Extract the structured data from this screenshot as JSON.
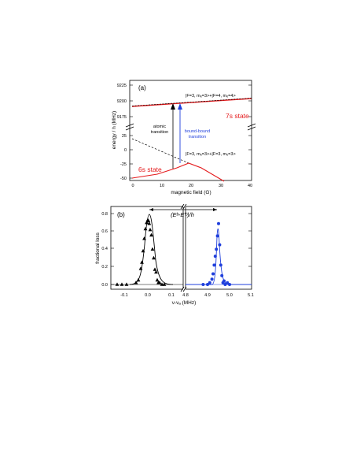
{
  "panel_a": {
    "label": "(a)",
    "xlabel": "magnetic field (G)",
    "ylabel": "energy / h (MHz)",
    "upper_ticks": [
      "9225",
      "9200",
      "9175"
    ],
    "lower_ticks": [
      "25",
      "0",
      "-25",
      "-50"
    ],
    "x_ticks": [
      "0",
      "10",
      "20",
      "30",
      "40"
    ],
    "state_7s": "7s  state",
    "state_6s": "6s  state",
    "atomic_transition": [
      "atomic",
      "transition"
    ],
    "bound_transition": [
      "bound-bound",
      "transition"
    ],
    "upper_ket": "|F=3, mₑ=3>+|F=4, mₑ=4>",
    "lower_ket": "|F=3, mₑ=3>+|F=3, mₑ=3>",
    "colors": {
      "red": "#e41a1c",
      "blue": "#1f3fdc",
      "black": "#000000"
    }
  },
  "panel_b": {
    "label": "(b)",
    "ylabel": "fractional loss",
    "xlabel": "ν-νₐ  (MHz)",
    "y_ticks": [
      "0.8",
      "0.6",
      "0.4",
      "0.2",
      "0.0"
    ],
    "x_ticks_left": [
      "-0.1",
      "0.0",
      "0.1"
    ],
    "x_ticks_right": [
      "4.8",
      "4.9",
      "5.0",
      "5.1"
    ],
    "energy_diff": "(Eᵇ-E'ᵇ)/h",
    "colors": {
      "black": "#000000",
      "blue": "#1f3fdc"
    }
  },
  "chart_data": [
    {
      "type": "line",
      "panel": "a",
      "xlabel": "magnetic field (G)",
      "ylabel": "energy / h (MHz)",
      "xlim": [
        0,
        40
      ],
      "series": [
        {
          "name": "7s state",
          "x": [
            0,
            40
          ],
          "y": [
            9192,
            9206
          ]
        },
        {
          "name": "6s state",
          "x": [
            0,
            5,
            10,
            15,
            19,
            25,
            30,
            34
          ],
          "y": [
            -54,
            -52,
            -48,
            -42,
            -37,
            -46,
            -56,
            -65
          ]
        }
      ]
    },
    {
      "type": "scatter",
      "panel": "b",
      "xlabel": "ν-νₐ  (MHz)",
      "ylabel": "fractional loss",
      "series": [
        {
          "name": "atomic",
          "x": [
            -0.13,
            -0.11,
            -0.09,
            -0.05,
            -0.04,
            -0.03,
            -0.025,
            -0.02,
            -0.015,
            -0.01,
            -0.005,
            0.0,
            0.003,
            0.006,
            0.01,
            0.015,
            0.02,
            0.025,
            0.03,
            0.035,
            0.04,
            0.045,
            0.05,
            0.06,
            0.07
          ],
          "y": [
            0.0,
            0.0,
            0.0,
            0.02,
            0.05,
            0.18,
            0.25,
            0.38,
            0.52,
            0.63,
            0.7,
            0.73,
            0.72,
            0.69,
            0.62,
            0.56,
            0.4,
            0.3,
            0.17,
            0.14,
            0.05,
            0.02,
            0.02,
            0.0,
            0.0
          ]
        },
        {
          "name": "bound-bound",
          "x": [
            4.88,
            4.9,
            4.91,
            4.92,
            4.925,
            4.93,
            4.935,
            4.94,
            4.945,
            4.95,
            4.955,
            4.96,
            4.965,
            4.97,
            4.975,
            4.98,
            4.99,
            5.0
          ],
          "y": [
            0.0,
            0.0,
            0.02,
            0.06,
            0.12,
            0.22,
            0.32,
            0.4,
            0.55,
            0.69,
            0.45,
            0.22,
            0.1,
            0.02,
            0.04,
            0.0,
            0.02,
            0.0
          ]
        }
      ]
    }
  ]
}
